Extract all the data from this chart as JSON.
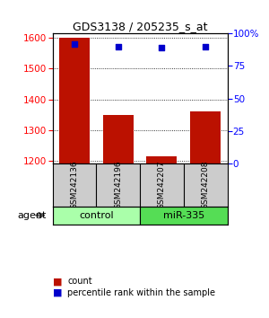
{
  "title": "GDS3138 / 205235_s_at",
  "samples": [
    "GSM242136",
    "GSM242196",
    "GSM242207",
    "GSM242208"
  ],
  "counts": [
    1600,
    1350,
    1215,
    1360
  ],
  "percentiles": [
    92,
    90,
    89,
    90
  ],
  "ylim_left": [
    1190,
    1615
  ],
  "ylim_right": [
    0,
    100
  ],
  "yticks_left": [
    1200,
    1300,
    1400,
    1500,
    1600
  ],
  "yticks_right": [
    0,
    25,
    50,
    75,
    100
  ],
  "ytick_right_labels": [
    "0",
    "25",
    "50",
    "75",
    "100%"
  ],
  "bar_color": "#BB1100",
  "dot_color": "#0000CC",
  "bar_width": 0.7,
  "background_color": "#ffffff",
  "agent_label": "agent",
  "control_color": "#aaffaa",
  "mir_color": "#55dd55",
  "sample_bg": "#cccccc"
}
